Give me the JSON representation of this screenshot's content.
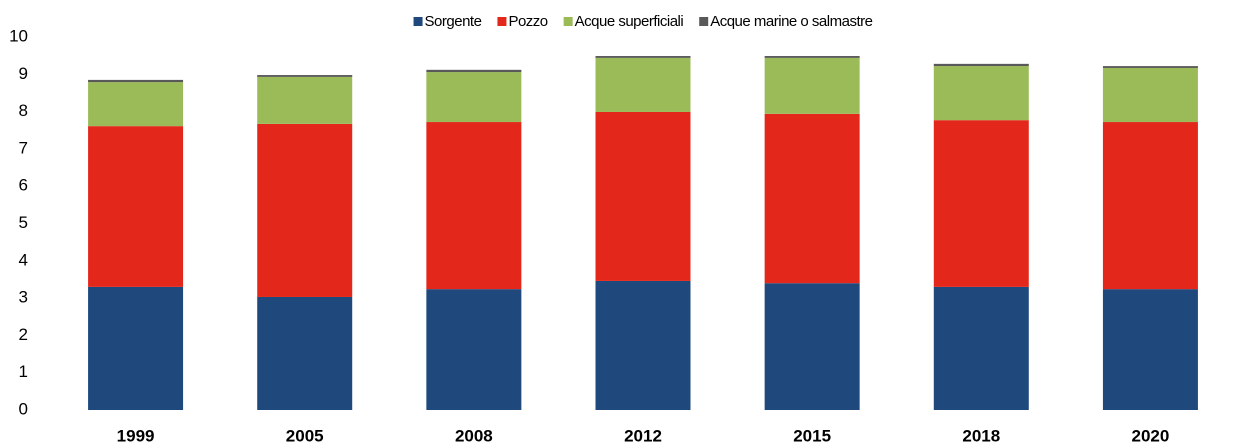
{
  "chart_data": {
    "type": "stacked_bar",
    "categories": [
      "1999",
      "2005",
      "2008",
      "2012",
      "2015",
      "2018",
      "2020"
    ],
    "series": [
      {
        "name": "Sorgente",
        "color": "#1f497d",
        "values": [
          3.3,
          3.03,
          3.24,
          3.46,
          3.4,
          3.3,
          3.24
        ]
      },
      {
        "name": "Pozzo",
        "color": "#e3281b",
        "values": [
          4.31,
          4.64,
          4.48,
          4.53,
          4.54,
          4.47,
          4.48
        ]
      },
      {
        "name": "Acque superficiali",
        "color": "#9bbb59",
        "values": [
          1.18,
          1.26,
          1.34,
          1.45,
          1.5,
          1.45,
          1.45
        ]
      },
      {
        "name": "Acque marine o salmastre",
        "color": "#595959",
        "values": [
          0.06,
          0.05,
          0.06,
          0.05,
          0.05,
          0.06,
          0.05
        ]
      }
    ],
    "ylim": [
      0,
      10
    ],
    "yticks": [
      0,
      1,
      2,
      3,
      4,
      5,
      6,
      7,
      8,
      9,
      10
    ],
    "legend": "top"
  }
}
